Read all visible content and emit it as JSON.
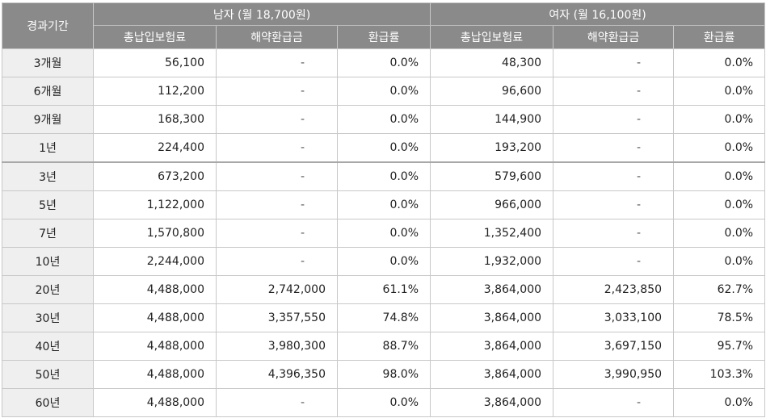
{
  "header": {
    "period": "경과기간",
    "male_group": "남자 (월 18,700원)",
    "female_group": "여자 (월 16,100원)",
    "col_premium": "총납입보험료",
    "col_refund": "해약환급금",
    "col_rate": "환급률"
  },
  "rows": [
    {
      "period": "3개월",
      "m_premium": "56,100",
      "m_refund": "-",
      "m_rate": "0.0%",
      "f_premium": "48,300",
      "f_refund": "-",
      "f_rate": "0.0%"
    },
    {
      "period": "6개월",
      "m_premium": "112,200",
      "m_refund": "-",
      "m_rate": "0.0%",
      "f_premium": "96,600",
      "f_refund": "-",
      "f_rate": "0.0%"
    },
    {
      "period": "9개월",
      "m_premium": "168,300",
      "m_refund": "-",
      "m_rate": "0.0%",
      "f_premium": "144,900",
      "f_refund": "-",
      "f_rate": "0.0%"
    },
    {
      "period": "1년",
      "m_premium": "224,400",
      "m_refund": "-",
      "m_rate": "0.0%",
      "f_premium": "193,200",
      "f_refund": "-",
      "f_rate": "0.0%"
    },
    {
      "period": "3년",
      "m_premium": "673,200",
      "m_refund": "-",
      "m_rate": "0.0%",
      "f_premium": "579,600",
      "f_refund": "-",
      "f_rate": "0.0%"
    },
    {
      "period": "5년",
      "m_premium": "1,122,000",
      "m_refund": "-",
      "m_rate": "0.0%",
      "f_premium": "966,000",
      "f_refund": "-",
      "f_rate": "0.0%"
    },
    {
      "period": "7년",
      "m_premium": "1,570,800",
      "m_refund": "-",
      "m_rate": "0.0%",
      "f_premium": "1,352,400",
      "f_refund": "-",
      "f_rate": "0.0%"
    },
    {
      "period": "10년",
      "m_premium": "2,244,000",
      "m_refund": "-",
      "m_rate": "0.0%",
      "f_premium": "1,932,000",
      "f_refund": "-",
      "f_rate": "0.0%"
    },
    {
      "period": "20년",
      "m_premium": "4,488,000",
      "m_refund": "2,742,000",
      "m_rate": "61.1%",
      "f_premium": "3,864,000",
      "f_refund": "2,423,850",
      "f_rate": "62.7%"
    },
    {
      "period": "30년",
      "m_premium": "4,488,000",
      "m_refund": "3,357,550",
      "m_rate": "74.8%",
      "f_premium": "3,864,000",
      "f_refund": "3,033,100",
      "f_rate": "78.5%"
    },
    {
      "period": "40년",
      "m_premium": "4,488,000",
      "m_refund": "3,980,300",
      "m_rate": "88.7%",
      "f_premium": "3,864,000",
      "f_refund": "3,697,150",
      "f_rate": "95.7%"
    },
    {
      "period": "50년",
      "m_premium": "4,488,000",
      "m_refund": "4,396,350",
      "m_rate": "98.0%",
      "f_premium": "3,864,000",
      "f_refund": "3,990,950",
      "f_rate": "103.3%"
    },
    {
      "period": "60년",
      "m_premium": "4,488,000",
      "m_refund": "-",
      "m_rate": "0.0%",
      "f_premium": "3,864,000",
      "f_refund": "-",
      "f_rate": "0.0%"
    }
  ]
}
